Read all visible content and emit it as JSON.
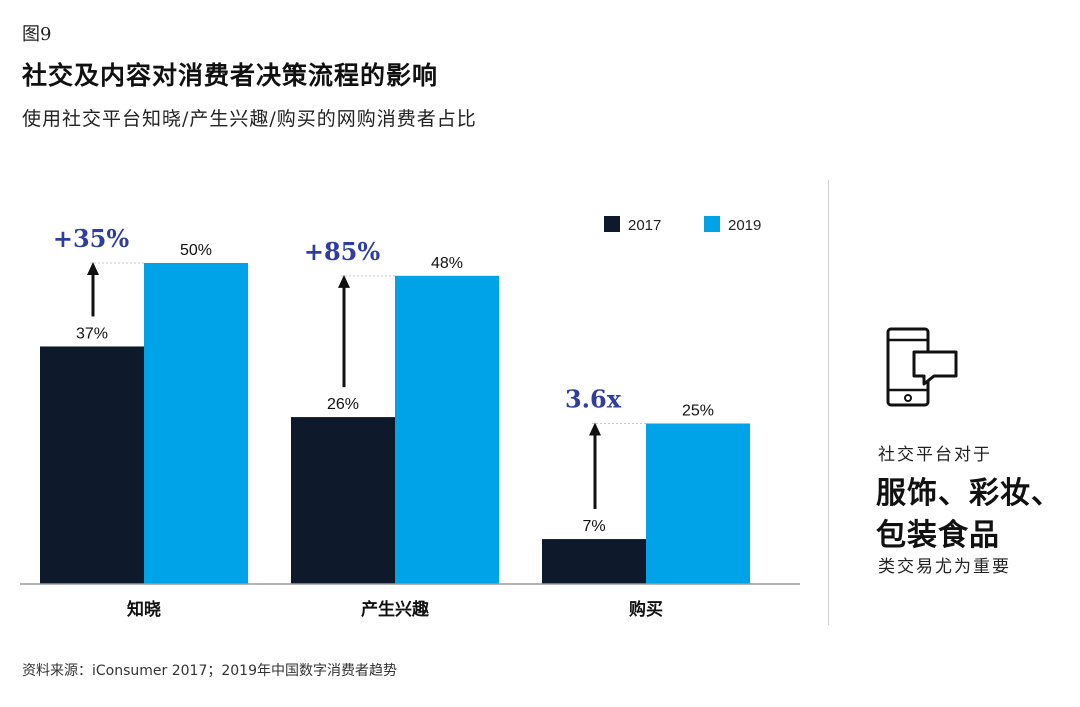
{
  "header": {
    "fig_label": "图9",
    "title": "社交及内容对消费者决策流程的影响",
    "subtitle": "使用社交平台知晓/产生兴趣/购买的网购消费者占比"
  },
  "colors": {
    "s2017": "#0e1a2b",
    "s2019": "#00a3e8",
    "accent": "#2f3e9e"
  },
  "chart_data": {
    "type": "bar",
    "categories": [
      "知晓",
      "产生兴趣",
      "购买"
    ],
    "series": [
      {
        "name": "2017",
        "values": [
          37,
          26,
          7
        ],
        "labels": [
          "37%",
          "26%",
          "7%"
        ]
      },
      {
        "name": "2019",
        "values": [
          50,
          48,
          25
        ],
        "labels": [
          "50%",
          "48%",
          "25%"
        ]
      }
    ],
    "growth": [
      "+35%",
      "+85%",
      "3.6x"
    ],
    "ylim": [
      0,
      60
    ],
    "legend": "top-right",
    "grid": false
  },
  "side_panel": {
    "icon": "phone-chat-icon",
    "line1": "社交平台对于",
    "line2": "服饰、彩妆、",
    "line3": "包装食品",
    "line4": "类交易尤为重要"
  },
  "footer": {
    "source": "资料来源：iConsumer 2017；2019年中国数字消费者趋势"
  }
}
